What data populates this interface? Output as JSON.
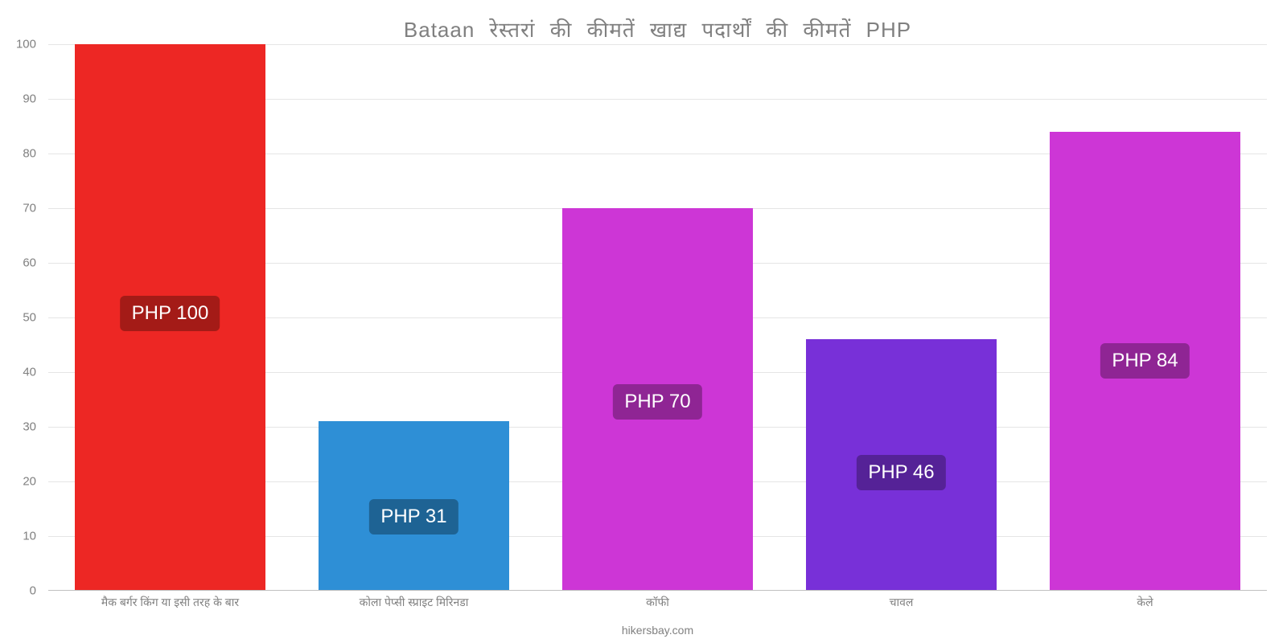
{
  "chart": {
    "type": "bar",
    "title": "Bataan रेस्तरां   की   कीमतें   खाद्य   पदार्थों   की   कीमतें   PHP",
    "title_fontsize": 26,
    "title_color": "#808080",
    "background_color": "#ffffff",
    "grid_color": "#e5e5e5",
    "ylim": [
      0,
      100
    ],
    "ytick_step": 10,
    "yticks": [
      0,
      10,
      20,
      30,
      40,
      50,
      60,
      70,
      80,
      90,
      100
    ],
    "axis_label_color": "#808080",
    "axis_label_fontsize": 15,
    "bar_width_ratio": 0.78,
    "categories": [
      "मैक बर्गर किंग या इसी तरह के बार",
      "कोला पेप्सी स्प्राइट मिरिनडा",
      "कॉफी",
      "चावल",
      "केले"
    ],
    "values": [
      100,
      31,
      70,
      46,
      84
    ],
    "value_labels": [
      "PHP 100",
      "PHP 31",
      "PHP 70",
      "PHP 46",
      "PHP 84"
    ],
    "bar_colors": [
      "#ed2724",
      "#2e8fd6",
      "#cd36d6",
      "#7830d8",
      "#cd36d6"
    ],
    "label_bg_colors": [
      "#a41b17",
      "#1e6394",
      "#8f2594",
      "#552297",
      "#8f2594"
    ],
    "value_label_fontsize": 24,
    "x_label_fontsize": 14,
    "attribution": "hikersbay.com"
  }
}
